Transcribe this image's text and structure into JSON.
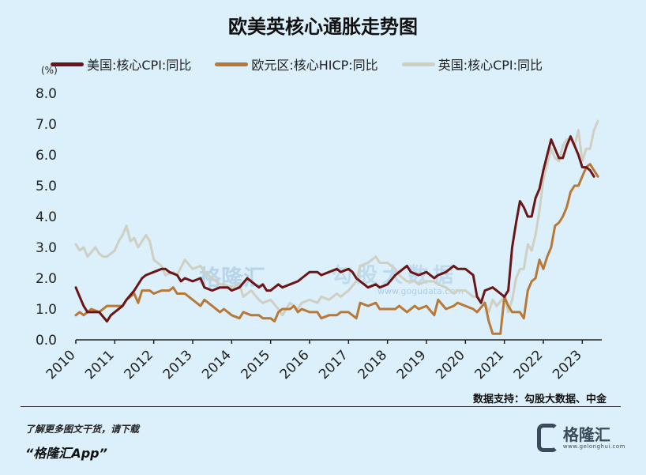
{
  "title": "欧美英核心通胀走势图",
  "unit_label": "(%)",
  "source": "数据支持：勾股大数据、中金",
  "promo_line1": "了解更多图文干货，请下载",
  "promo_line2": "“格隆汇App”",
  "logo": {
    "name": "格隆汇",
    "url": "www.gelonghui.com"
  },
  "watermark": {
    "brand": "格隆汇",
    "brand2": "勾股大数据",
    "url": "www.gogudata.com"
  },
  "colors": {
    "background": "#dbf0fa",
    "us": "#6b1518",
    "eu": "#b87838",
    "uk": "#cfcfc2"
  },
  "chart_data": {
    "type": "line",
    "title": "欧美英核心通胀走势图",
    "xlabel": "",
    "ylabel": "(%)",
    "ylim": [
      0,
      8
    ],
    "xlim": [
      2010,
      2023.5
    ],
    "y_ticks": [
      "0.0",
      "1.0",
      "2.0",
      "3.0",
      "4.0",
      "5.0",
      "6.0",
      "7.0",
      "8.0"
    ],
    "x_ticks": [
      "2010",
      "2011",
      "2012",
      "2013",
      "2014",
      "2015",
      "2016",
      "2017",
      "2018",
      "2019",
      "2020",
      "2021",
      "2022",
      "2023"
    ],
    "series": [
      {
        "name": "美国:核心CPI:同比",
        "color": "#6b1518",
        "points": [
          [
            2010.0,
            1.7
          ],
          [
            2010.1,
            1.4
          ],
          [
            2010.2,
            1.1
          ],
          [
            2010.3,
            0.9
          ],
          [
            2010.5,
            0.9
          ],
          [
            2010.6,
            0.9
          ],
          [
            2010.8,
            0.6
          ],
          [
            2010.9,
            0.8
          ],
          [
            2011.0,
            0.9
          ],
          [
            2011.2,
            1.1
          ],
          [
            2011.3,
            1.3
          ],
          [
            2011.5,
            1.6
          ],
          [
            2011.7,
            2.0
          ],
          [
            2011.8,
            2.1
          ],
          [
            2012.0,
            2.2
          ],
          [
            2012.2,
            2.3
          ],
          [
            2012.3,
            2.3
          ],
          [
            2012.4,
            2.2
          ],
          [
            2012.6,
            2.1
          ],
          [
            2012.7,
            1.9
          ],
          [
            2012.8,
            2.0
          ],
          [
            2013.0,
            1.9
          ],
          [
            2013.2,
            2.0
          ],
          [
            2013.3,
            1.7
          ],
          [
            2013.5,
            1.6
          ],
          [
            2013.7,
            1.7
          ],
          [
            2013.9,
            1.7
          ],
          [
            2014.0,
            1.6
          ],
          [
            2014.2,
            1.7
          ],
          [
            2014.4,
            2.0
          ],
          [
            2014.5,
            1.9
          ],
          [
            2014.7,
            1.7
          ],
          [
            2014.8,
            1.8
          ],
          [
            2014.9,
            1.6
          ],
          [
            2015.0,
            1.6
          ],
          [
            2015.2,
            1.8
          ],
          [
            2015.3,
            1.7
          ],
          [
            2015.5,
            1.8
          ],
          [
            2015.7,
            1.9
          ],
          [
            2015.8,
            2.0
          ],
          [
            2016.0,
            2.2
          ],
          [
            2016.2,
            2.2
          ],
          [
            2016.3,
            2.1
          ],
          [
            2016.5,
            2.2
          ],
          [
            2016.7,
            2.3
          ],
          [
            2016.8,
            2.2
          ],
          [
            2017.0,
            2.3
          ],
          [
            2017.1,
            2.2
          ],
          [
            2017.2,
            2.0
          ],
          [
            2017.3,
            1.9
          ],
          [
            2017.5,
            1.7
          ],
          [
            2017.7,
            1.8
          ],
          [
            2017.8,
            1.7
          ],
          [
            2018.0,
            1.8
          ],
          [
            2018.2,
            2.1
          ],
          [
            2018.3,
            2.2
          ],
          [
            2018.5,
            2.4
          ],
          [
            2018.6,
            2.2
          ],
          [
            2018.8,
            2.1
          ],
          [
            2019.0,
            2.2
          ],
          [
            2019.2,
            2.0
          ],
          [
            2019.3,
            2.1
          ],
          [
            2019.5,
            2.2
          ],
          [
            2019.7,
            2.4
          ],
          [
            2019.8,
            2.3
          ],
          [
            2020.0,
            2.3
          ],
          [
            2020.2,
            2.1
          ],
          [
            2020.3,
            1.4
          ],
          [
            2020.4,
            1.2
          ],
          [
            2020.5,
            1.6
          ],
          [
            2020.7,
            1.7
          ],
          [
            2020.8,
            1.6
          ],
          [
            2021.0,
            1.4
          ],
          [
            2021.1,
            1.6
          ],
          [
            2021.2,
            3.0
          ],
          [
            2021.3,
            3.8
          ],
          [
            2021.4,
            4.5
          ],
          [
            2021.5,
            4.3
          ],
          [
            2021.6,
            4.0
          ],
          [
            2021.7,
            4.0
          ],
          [
            2021.8,
            4.6
          ],
          [
            2021.9,
            4.9
          ],
          [
            2022.0,
            5.5
          ],
          [
            2022.1,
            6.0
          ],
          [
            2022.2,
            6.5
          ],
          [
            2022.3,
            6.2
          ],
          [
            2022.4,
            5.9
          ],
          [
            2022.5,
            5.9
          ],
          [
            2022.6,
            6.3
          ],
          [
            2022.7,
            6.6
          ],
          [
            2022.8,
            6.3
          ],
          [
            2022.9,
            6.0
          ],
          [
            2023.0,
            5.6
          ],
          [
            2023.1,
            5.6
          ],
          [
            2023.2,
            5.5
          ],
          [
            2023.3,
            5.3
          ]
        ]
      },
      {
        "name": "欧元区:核心HICP:同比",
        "color": "#b87838",
        "points": [
          [
            2010.0,
            0.8
          ],
          [
            2010.1,
            0.9
          ],
          [
            2010.2,
            0.8
          ],
          [
            2010.4,
            1.0
          ],
          [
            2010.6,
            0.9
          ],
          [
            2010.8,
            1.1
          ],
          [
            2011.0,
            1.1
          ],
          [
            2011.2,
            1.1
          ],
          [
            2011.3,
            1.3
          ],
          [
            2011.5,
            1.5
          ],
          [
            2011.6,
            1.2
          ],
          [
            2011.7,
            1.6
          ],
          [
            2011.9,
            1.6
          ],
          [
            2012.0,
            1.5
          ],
          [
            2012.2,
            1.6
          ],
          [
            2012.4,
            1.6
          ],
          [
            2012.5,
            1.7
          ],
          [
            2012.6,
            1.5
          ],
          [
            2012.8,
            1.5
          ],
          [
            2013.0,
            1.3
          ],
          [
            2013.2,
            1.1
          ],
          [
            2013.3,
            1.3
          ],
          [
            2013.5,
            1.1
          ],
          [
            2013.7,
            0.9
          ],
          [
            2013.8,
            1.0
          ],
          [
            2014.0,
            0.8
          ],
          [
            2014.2,
            0.7
          ],
          [
            2014.3,
            0.9
          ],
          [
            2014.5,
            0.8
          ],
          [
            2014.7,
            0.8
          ],
          [
            2014.8,
            0.7
          ],
          [
            2015.0,
            0.7
          ],
          [
            2015.1,
            0.6
          ],
          [
            2015.2,
            0.9
          ],
          [
            2015.3,
            1.0
          ],
          [
            2015.5,
            1.0
          ],
          [
            2015.6,
            1.1
          ],
          [
            2015.7,
            0.9
          ],
          [
            2015.8,
            1.0
          ],
          [
            2016.0,
            0.9
          ],
          [
            2016.2,
            0.9
          ],
          [
            2016.3,
            0.7
          ],
          [
            2016.5,
            0.8
          ],
          [
            2016.7,
            0.8
          ],
          [
            2016.8,
            0.9
          ],
          [
            2017.0,
            0.9
          ],
          [
            2017.2,
            0.7
          ],
          [
            2017.3,
            1.2
          ],
          [
            2017.5,
            1.1
          ],
          [
            2017.7,
            1.2
          ],
          [
            2017.8,
            1.0
          ],
          [
            2018.0,
            1.0
          ],
          [
            2018.2,
            1.0
          ],
          [
            2018.3,
            1.1
          ],
          [
            2018.5,
            0.9
          ],
          [
            2018.7,
            1.1
          ],
          [
            2018.8,
            1.0
          ],
          [
            2019.0,
            1.1
          ],
          [
            2019.2,
            0.8
          ],
          [
            2019.3,
            1.3
          ],
          [
            2019.5,
            1.0
          ],
          [
            2019.7,
            1.1
          ],
          [
            2019.8,
            1.2
          ],
          [
            2020.0,
            1.1
          ],
          [
            2020.2,
            1.0
          ],
          [
            2020.3,
            0.9
          ],
          [
            2020.5,
            1.2
          ],
          [
            2020.6,
            0.6
          ],
          [
            2020.7,
            0.2
          ],
          [
            2020.8,
            0.2
          ],
          [
            2020.9,
            0.2
          ],
          [
            2021.0,
            1.4
          ],
          [
            2021.1,
            1.1
          ],
          [
            2021.2,
            0.9
          ],
          [
            2021.4,
            0.9
          ],
          [
            2021.5,
            0.7
          ],
          [
            2021.6,
            1.6
          ],
          [
            2021.7,
            1.9
          ],
          [
            2021.8,
            2.0
          ],
          [
            2021.9,
            2.6
          ],
          [
            2022.0,
            2.3
          ],
          [
            2022.1,
            2.7
          ],
          [
            2022.2,
            3.0
          ],
          [
            2022.3,
            3.7
          ],
          [
            2022.4,
            3.8
          ],
          [
            2022.5,
            4.0
          ],
          [
            2022.6,
            4.3
          ],
          [
            2022.7,
            4.8
          ],
          [
            2022.8,
            5.0
          ],
          [
            2022.9,
            5.0
          ],
          [
            2023.0,
            5.3
          ],
          [
            2023.1,
            5.6
          ],
          [
            2023.2,
            5.7
          ],
          [
            2023.3,
            5.5
          ],
          [
            2023.4,
            5.3
          ]
        ]
      },
      {
        "name": "英国:核心CPI:同比",
        "color": "#cfcfc2",
        "points": [
          [
            2010.0,
            3.1
          ],
          [
            2010.1,
            2.9
          ],
          [
            2010.2,
            3.0
          ],
          [
            2010.3,
            2.7
          ],
          [
            2010.5,
            3.0
          ],
          [
            2010.6,
            2.8
          ],
          [
            2010.7,
            2.7
          ],
          [
            2010.8,
            2.7
          ],
          [
            2011.0,
            2.9
          ],
          [
            2011.1,
            3.2
          ],
          [
            2011.2,
            3.4
          ],
          [
            2011.3,
            3.7
          ],
          [
            2011.4,
            3.2
          ],
          [
            2011.5,
            3.3
          ],
          [
            2011.6,
            3.0
          ],
          [
            2011.7,
            3.2
          ],
          [
            2011.8,
            3.4
          ],
          [
            2011.9,
            3.2
          ],
          [
            2012.0,
            2.6
          ],
          [
            2012.2,
            2.4
          ],
          [
            2012.3,
            2.1
          ],
          [
            2012.5,
            2.2
          ],
          [
            2012.6,
            2.1
          ],
          [
            2012.8,
            2.6
          ],
          [
            2013.0,
            2.3
          ],
          [
            2013.2,
            2.4
          ],
          [
            2013.3,
            2.2
          ],
          [
            2013.5,
            2.0
          ],
          [
            2013.7,
            1.8
          ],
          [
            2013.8,
            1.8
          ],
          [
            2014.0,
            1.7
          ],
          [
            2014.2,
            1.8
          ],
          [
            2014.3,
            1.4
          ],
          [
            2014.5,
            1.6
          ],
          [
            2014.7,
            1.3
          ],
          [
            2014.8,
            1.2
          ],
          [
            2015.0,
            1.3
          ],
          [
            2015.2,
            1.0
          ],
          [
            2015.3,
            0.8
          ],
          [
            2015.5,
            1.2
          ],
          [
            2015.7,
            1.0
          ],
          [
            2015.8,
            1.2
          ],
          [
            2016.0,
            1.3
          ],
          [
            2016.2,
            1.2
          ],
          [
            2016.3,
            1.4
          ],
          [
            2016.5,
            1.3
          ],
          [
            2016.7,
            1.5
          ],
          [
            2016.8,
            1.4
          ],
          [
            2017.0,
            1.6
          ],
          [
            2017.2,
            1.9
          ],
          [
            2017.3,
            2.4
          ],
          [
            2017.5,
            2.5
          ],
          [
            2017.7,
            2.7
          ],
          [
            2017.8,
            2.5
          ],
          [
            2018.0,
            2.5
          ],
          [
            2018.2,
            2.3
          ],
          [
            2018.3,
            2.1
          ],
          [
            2018.5,
            1.9
          ],
          [
            2018.7,
            1.9
          ],
          [
            2018.8,
            1.8
          ],
          [
            2019.0,
            1.9
          ],
          [
            2019.2,
            1.9
          ],
          [
            2019.3,
            1.8
          ],
          [
            2019.5,
            1.7
          ],
          [
            2019.7,
            1.5
          ],
          [
            2019.8,
            1.6
          ],
          [
            2020.0,
            1.6
          ],
          [
            2020.2,
            1.4
          ],
          [
            2020.3,
            1.4
          ],
          [
            2020.5,
            1.2
          ],
          [
            2020.6,
            0.9
          ],
          [
            2020.7,
            1.3
          ],
          [
            2020.8,
            1.1
          ],
          [
            2021.0,
            1.4
          ],
          [
            2021.1,
            0.9
          ],
          [
            2021.2,
            1.3
          ],
          [
            2021.3,
            2.0
          ],
          [
            2021.4,
            2.3
          ],
          [
            2021.5,
            2.3
          ],
          [
            2021.6,
            3.1
          ],
          [
            2021.7,
            2.9
          ],
          [
            2021.8,
            3.4
          ],
          [
            2021.9,
            4.2
          ],
          [
            2022.0,
            5.2
          ],
          [
            2022.1,
            5.7
          ],
          [
            2022.2,
            6.2
          ],
          [
            2022.3,
            5.9
          ],
          [
            2022.4,
            5.8
          ],
          [
            2022.5,
            6.3
          ],
          [
            2022.6,
            6.5
          ],
          [
            2022.7,
            6.5
          ],
          [
            2022.8,
            6.3
          ],
          [
            2022.9,
            6.8
          ],
          [
            2023.0,
            5.8
          ],
          [
            2023.1,
            6.2
          ],
          [
            2023.2,
            6.2
          ],
          [
            2023.3,
            6.8
          ],
          [
            2023.4,
            7.1
          ]
        ]
      }
    ]
  }
}
